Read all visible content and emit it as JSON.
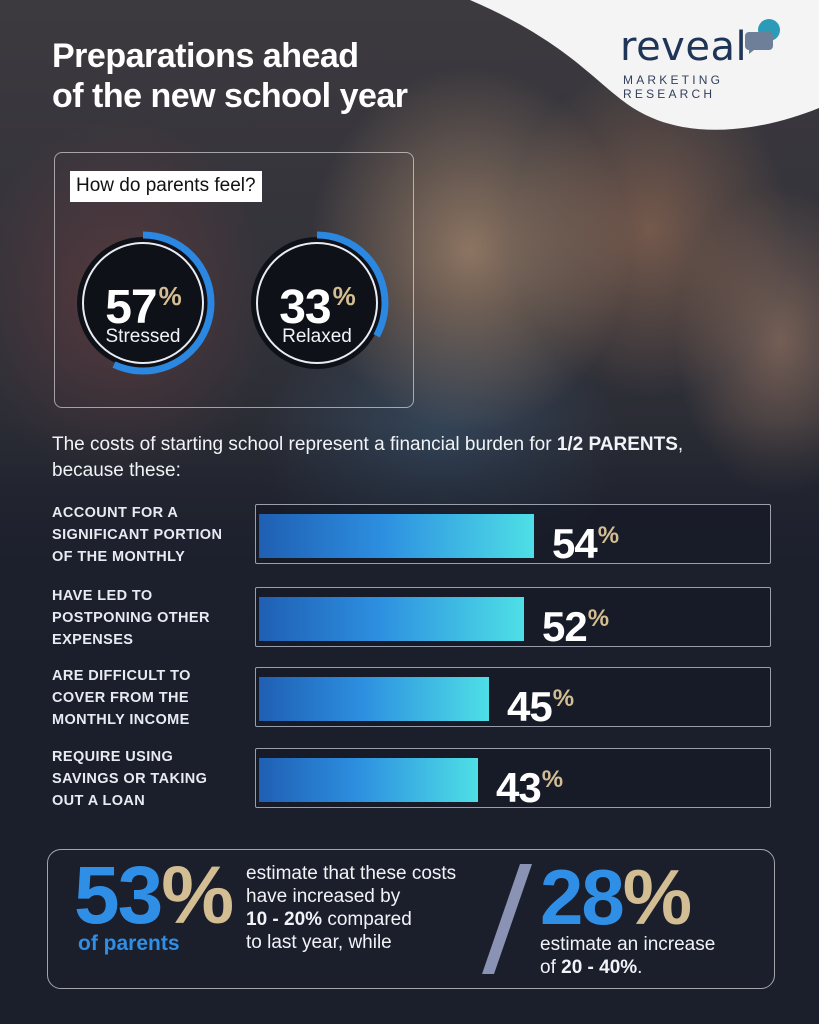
{
  "title_line1": "Preparations ahead",
  "title_line2": "of the new school year",
  "logo": {
    "word": "reveal",
    "sub_line1": "MARKETING",
    "sub_line2": "RESEARCH"
  },
  "feel": {
    "label": "How do parents feel?",
    "gauges": [
      {
        "value": "57",
        "pct": "%",
        "label": "Stressed",
        "fraction": 0.57
      },
      {
        "value": "33",
        "pct": "%",
        "label": "Relaxed",
        "fraction": 0.33
      }
    ]
  },
  "burden": {
    "text_before": "The costs of starting school represent a financial burden for ",
    "text_bold": "1/2 PARENTS",
    "text_after": ", because these:"
  },
  "chart_data": {
    "type": "bar",
    "categories": [
      [
        "ACCOUNT FOR A",
        "SIGNIFICANT PORTION",
        "OF THE MONTHLY"
      ],
      [
        "HAVE LED TO",
        "POSTPONING OTHER",
        "EXPENSES"
      ],
      [
        "ARE DIFFICULT TO",
        "COVER FROM THE",
        "MONTHLY INCOME"
      ],
      [
        "REQUIRE USING",
        "SAVINGS OR TAKING",
        "OUT A LOAN"
      ]
    ],
    "values": [
      54,
      52,
      45,
      43
    ],
    "value_labels": [
      "54",
      "52",
      "45",
      "43"
    ],
    "unit": "%",
    "xlim": [
      0,
      100
    ]
  },
  "bottom": {
    "big_left": "53",
    "big_left_pct": "%",
    "of_parents": "of parents",
    "left_line1": "estimate that these costs",
    "left_line2": "have increased by",
    "left_bold": "10 - 20%",
    "left_line3_rest": " compared",
    "left_line4": "to last year, while",
    "big_right": "28",
    "big_right_pct": "%",
    "right_line1": "estimate an increase",
    "right_line2_pre": "of ",
    "right_bold": "20 - 40%",
    "right_line2_post": "."
  },
  "colors": {
    "accent_blue": "#2f8fe6",
    "accent_gold": "#d3bd93",
    "bar_start": "#1f5fb3",
    "bar_end": "#4edfe6",
    "background": "#1b1f2c"
  }
}
